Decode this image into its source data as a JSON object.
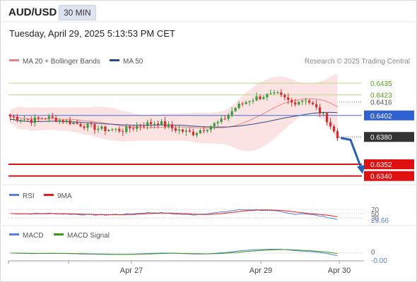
{
  "header": {
    "symbol": "AUD/USD",
    "timeframe": "30 MIN",
    "datetime": "Tuesday, April 29, 2025 5:13:53 PM CET"
  },
  "legend": {
    "items": [
      {
        "label": "MA 20 + Bollinger Bands",
        "color": "#f08080"
      },
      {
        "label": "MA 50",
        "color": "#2a4a8a"
      }
    ],
    "credit": "Research © 2025 Trading Central"
  },
  "chart_data": [
    {
      "type": "candlestick",
      "series": [
        {
          "name": "MA 20 + Bollinger Bands",
          "color": "#f08080"
        },
        {
          "name": "MA 50",
          "color": "#2a4a8a"
        }
      ],
      "y_range": [
        0.6334,
        0.6448
      ],
      "current_price": "0.6380",
      "levels": [
        {
          "value": 0.6435,
          "label": "0.6435",
          "kind": "resistance",
          "color": "#5a9e1a"
        },
        {
          "value": 0.6423,
          "label": "0.6423",
          "kind": "resistance",
          "color": "#5a9e1a"
        },
        {
          "value": 0.6416,
          "label": "0.6416",
          "kind": "reference",
          "color": "#555555"
        },
        {
          "value": 0.6402,
          "label": "0.6402",
          "kind": "pivot",
          "color": "#3f6fd8"
        },
        {
          "value": 0.638,
          "label": "0.6380",
          "kind": "last",
          "color": "#333333"
        },
        {
          "value": 0.6352,
          "label": "0.6352",
          "kind": "target",
          "color": "#e01010"
        },
        {
          "value": 0.634,
          "label": "0.6340",
          "kind": "target",
          "color": "#e01010"
        }
      ],
      "forecast_arrow": {
        "from": 0.6379,
        "to": 0.6343
      }
    },
    {
      "type": "line",
      "series": [
        {
          "name": "RSI",
          "color": "#5a7fe0"
        },
        {
          "name": "9MA",
          "color": "#e02020"
        }
      ],
      "levels": [
        {
          "value": 70,
          "label": "70"
        },
        {
          "value": 50,
          "label": "50"
        },
        {
          "value": 30,
          "label": "30"
        }
      ],
      "current_value": "29.66"
    },
    {
      "type": "line",
      "series": [
        {
          "name": "MACD",
          "color": "#5a7fe0"
        },
        {
          "name": "MACD Signal",
          "color": "#3a9a1a"
        }
      ],
      "zero_label": "0",
      "current_value": "-0.00"
    }
  ],
  "x_axis": {
    "ticks": [
      {
        "label": "Apr 27"
      },
      {
        "label": "Apr 29"
      },
      {
        "label": "Apr 30"
      }
    ]
  }
}
